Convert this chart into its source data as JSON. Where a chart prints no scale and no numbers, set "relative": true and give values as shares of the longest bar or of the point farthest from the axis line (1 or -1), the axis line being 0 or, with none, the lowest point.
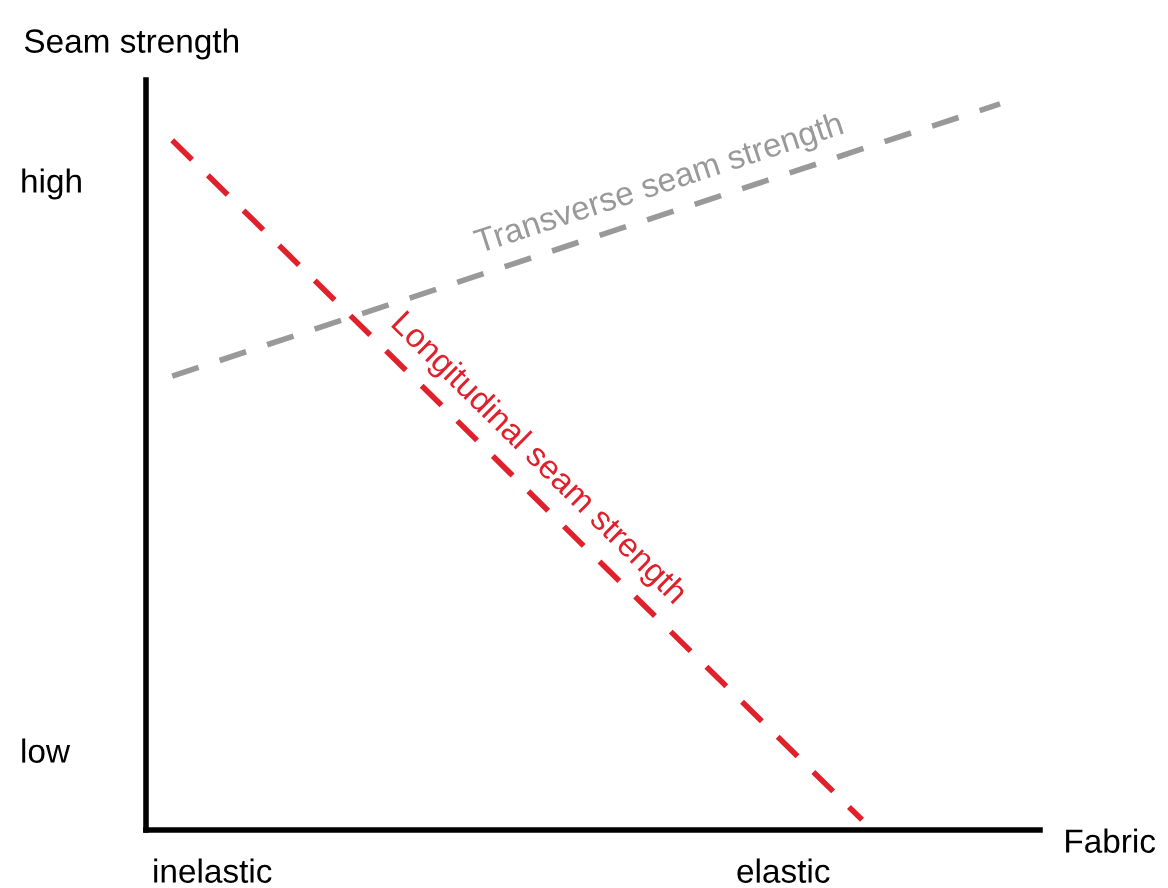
{
  "chart_data": {
    "type": "line",
    "relative": true,
    "xlabel": "Fabric",
    "ylabel": "Seam strength",
    "annotations": [
      "high",
      "low",
      "inelastic",
      "elastic"
    ],
    "categories": [
      null,
      null,
      null,
      null,
      null,
      null,
      null
    ],
    "line_style": "dashed",
    "marker": "none",
    "legend": false,
    "series": [
      {
        "name": "Transverse seam strength",
        "color": "#999999",
        "values": [
          0.625,
          0.688,
          0.75,
          0.813,
          0.875,
          0.938,
          1.0
        ]
      },
      {
        "name": "Longitudinal seam strength",
        "color": "#e0202a",
        "values": [
          0.95,
          0.763,
          0.576,
          0.388,
          0.201,
          0.014,
          null
        ]
      }
    ]
  }
}
